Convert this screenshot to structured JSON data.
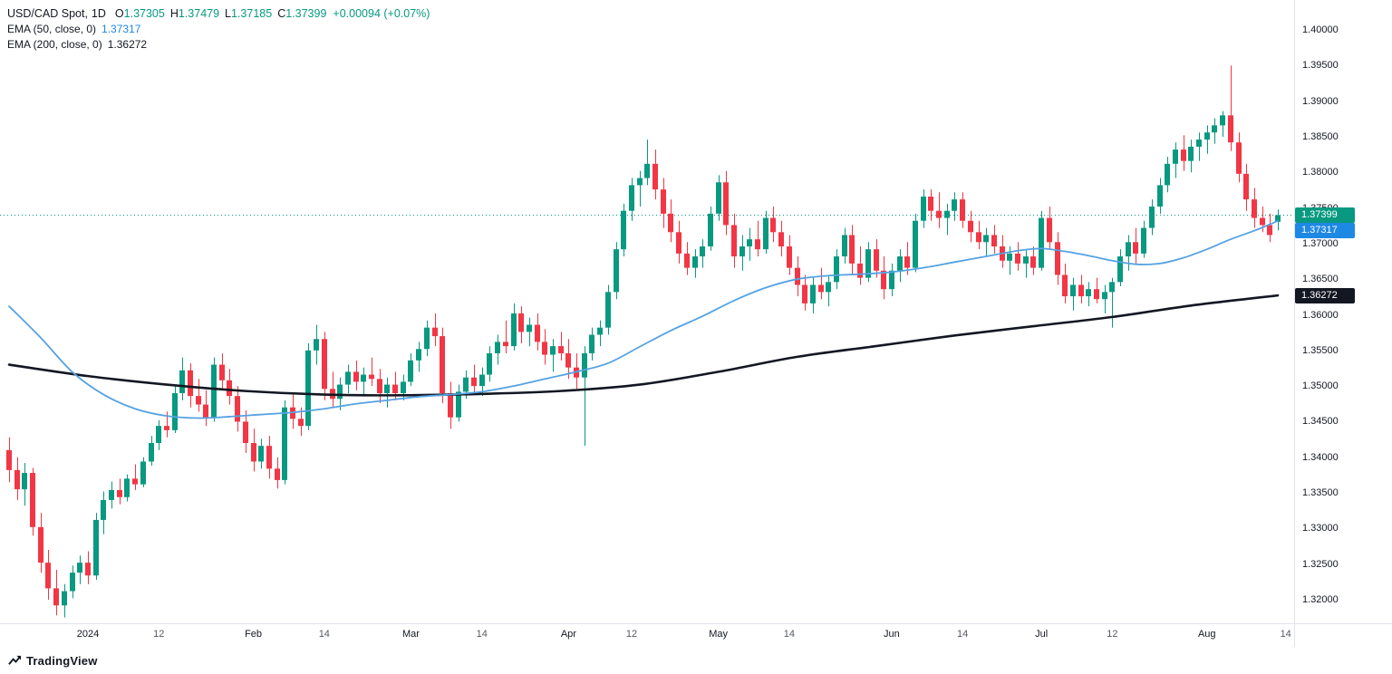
{
  "header": {
    "symbol": "USD/CAD Spot,",
    "timeframe": "1D",
    "ohlc": [
      {
        "label": "O",
        "value": "1.37305"
      },
      {
        "label": "H",
        "value": "1.37479"
      },
      {
        "label": "L",
        "value": "1.37185"
      },
      {
        "label": "C",
        "value": "1.37399"
      }
    ],
    "change": "+0.00094 (+0.07%)"
  },
  "indicators": [
    {
      "name": "EMA (50, close, 0)",
      "value": "1.37317",
      "color": "#1E88E5"
    },
    {
      "name": "EMA (200, close, 0)",
      "value": "1.36272",
      "color": "#131722"
    }
  ],
  "footer": {
    "logo_text": "TradingView"
  },
  "chart_data": {
    "type": "candlestick",
    "title": "USD/CAD Spot daily candlesticks with EMA(50) and EMA(200)",
    "symbol": "USD/CAD",
    "interval": "1D",
    "legend_position": "top-left",
    "grid": false,
    "colors": {
      "up": "#089981",
      "down": "#F23645",
      "ema50_line": "#55A2E3",
      "ema50_accent": "#1E88E5",
      "ema200_line": "#131722",
      "last_price_line": "#089981"
    },
    "y_axis": {
      "min": 1.32,
      "max": 1.4,
      "tick_labels": [
        "1.40000",
        "1.39500",
        "1.39000",
        "1.38500",
        "1.38000",
        "1.37500",
        "1.37000",
        "1.36500",
        "1.36000",
        "1.35500",
        "1.35000",
        "1.34500",
        "1.34000",
        "1.33500",
        "1.33000",
        "1.32500",
        "1.32000"
      ]
    },
    "x_ticks": [
      {
        "label": "2024",
        "i": 10,
        "major": true
      },
      {
        "label": "12",
        "i": 19,
        "major": false
      },
      {
        "label": "Feb",
        "i": 31,
        "major": true
      },
      {
        "label": "14",
        "i": 40,
        "major": false
      },
      {
        "label": "Mar",
        "i": 51,
        "major": true
      },
      {
        "label": "14",
        "i": 60,
        "major": false
      },
      {
        "label": "Apr",
        "i": 71,
        "major": true
      },
      {
        "label": "12",
        "i": 79,
        "major": false
      },
      {
        "label": "May",
        "i": 90,
        "major": true
      },
      {
        "label": "14",
        "i": 99,
        "major": false
      },
      {
        "label": "Jun",
        "i": 112,
        "major": true
      },
      {
        "label": "14",
        "i": 121,
        "major": false
      },
      {
        "label": "Jul",
        "i": 131,
        "major": true
      },
      {
        "label": "12",
        "i": 140,
        "major": false
      },
      {
        "label": "Aug",
        "i": 152,
        "major": true
      },
      {
        "label": "14",
        "i": 162,
        "major": false
      }
    ],
    "last_price": 1.37399,
    "price_tags": [
      {
        "text": "1.37399",
        "price": 1.37399,
        "color": "#089981"
      },
      {
        "text": "1.37317",
        "price": 1.37317,
        "color": "#1E88E5"
      },
      {
        "text": "1.36272",
        "price": 1.36272,
        "color": "#131722"
      }
    ],
    "candles": [
      [
        1.341,
        1.3428,
        1.3365,
        1.3382
      ],
      [
        1.3382,
        1.34,
        1.334,
        1.3355
      ],
      [
        1.3355,
        1.3392,
        1.3332,
        1.3378
      ],
      [
        1.3378,
        1.3385,
        1.329,
        1.3302
      ],
      [
        1.3302,
        1.3322,
        1.3238,
        1.3252
      ],
      [
        1.3252,
        1.327,
        1.32,
        1.3216
      ],
      [
        1.3216,
        1.3242,
        1.3178,
        1.3192
      ],
      [
        1.3192,
        1.3222,
        1.3175,
        1.3212
      ],
      [
        1.3212,
        1.3248,
        1.3202,
        1.3238
      ],
      [
        1.3238,
        1.3262,
        1.3222,
        1.3252
      ],
      [
        1.3252,
        1.3268,
        1.3222,
        1.3234
      ],
      [
        1.3234,
        1.3322,
        1.3228,
        1.3312
      ],
      [
        1.3312,
        1.3352,
        1.3292,
        1.334
      ],
      [
        1.334,
        1.3366,
        1.3328,
        1.3354
      ],
      [
        1.3354,
        1.337,
        1.3334,
        1.3344
      ],
      [
        1.3344,
        1.3376,
        1.3338,
        1.337
      ],
      [
        1.337,
        1.339,
        1.3354,
        1.3362
      ],
      [
        1.3362,
        1.34,
        1.3358,
        1.3394
      ],
      [
        1.3394,
        1.343,
        1.3388,
        1.342
      ],
      [
        1.342,
        1.3452,
        1.341,
        1.3444
      ],
      [
        1.3444,
        1.3464,
        1.3428,
        1.3438
      ],
      [
        1.3438,
        1.35,
        1.3434,
        1.349
      ],
      [
        1.349,
        1.354,
        1.348,
        1.3522
      ],
      [
        1.3522,
        1.3532,
        1.347,
        1.3486
      ],
      [
        1.3486,
        1.351,
        1.3464,
        1.3474
      ],
      [
        1.3474,
        1.3494,
        1.3444,
        1.3456
      ],
      [
        1.3456,
        1.354,
        1.345,
        1.353
      ],
      [
        1.353,
        1.3546,
        1.3494,
        1.3508
      ],
      [
        1.3508,
        1.3524,
        1.3474,
        1.3486
      ],
      [
        1.3486,
        1.35,
        1.3436,
        1.345
      ],
      [
        1.345,
        1.3466,
        1.3406,
        1.342
      ],
      [
        1.342,
        1.344,
        1.338,
        1.3394
      ],
      [
        1.3394,
        1.3426,
        1.3384,
        1.3416
      ],
      [
        1.3416,
        1.343,
        1.337,
        1.3384
      ],
      [
        1.3384,
        1.34,
        1.3356,
        1.3368
      ],
      [
        1.3368,
        1.348,
        1.3362,
        1.347
      ],
      [
        1.347,
        1.349,
        1.344,
        1.3454
      ],
      [
        1.3454,
        1.347,
        1.343,
        1.3444
      ],
      [
        1.3444,
        1.356,
        1.3438,
        1.355
      ],
      [
        1.355,
        1.3586,
        1.353,
        1.3566
      ],
      [
        1.3566,
        1.3576,
        1.348,
        1.3496
      ],
      [
        1.3496,
        1.352,
        1.347,
        1.3482
      ],
      [
        1.3482,
        1.3512,
        1.3466,
        1.3502
      ],
      [
        1.3502,
        1.353,
        1.349,
        1.352
      ],
      [
        1.352,
        1.3536,
        1.3494,
        1.3506
      ],
      [
        1.3506,
        1.3526,
        1.3486,
        1.3516
      ],
      [
        1.3516,
        1.354,
        1.35,
        1.351
      ],
      [
        1.351,
        1.3524,
        1.3476,
        1.349
      ],
      [
        1.349,
        1.3512,
        1.347,
        1.3502
      ],
      [
        1.3502,
        1.352,
        1.348,
        1.349
      ],
      [
        1.349,
        1.3516,
        1.348,
        1.3506
      ],
      [
        1.3506,
        1.3546,
        1.35,
        1.3536
      ],
      [
        1.3536,
        1.3562,
        1.352,
        1.3552
      ],
      [
        1.3552,
        1.3592,
        1.3542,
        1.3582
      ],
      [
        1.3582,
        1.3602,
        1.3556,
        1.357
      ],
      [
        1.357,
        1.3582,
        1.3476,
        1.349
      ],
      [
        1.349,
        1.3506,
        1.344,
        1.3456
      ],
      [
        1.3456,
        1.3502,
        1.345,
        1.3492
      ],
      [
        1.3492,
        1.3522,
        1.3482,
        1.3512
      ],
      [
        1.3512,
        1.353,
        1.349,
        1.35
      ],
      [
        1.35,
        1.3526,
        1.3486,
        1.3516
      ],
      [
        1.3516,
        1.3556,
        1.3506,
        1.3546
      ],
      [
        1.3546,
        1.3572,
        1.353,
        1.3562
      ],
      [
        1.3562,
        1.3592,
        1.3546,
        1.3556
      ],
      [
        1.3556,
        1.3616,
        1.355,
        1.3602
      ],
      [
        1.3602,
        1.3612,
        1.356,
        1.3576
      ],
      [
        1.3576,
        1.3596,
        1.3556,
        1.3586
      ],
      [
        1.3586,
        1.3602,
        1.355,
        1.3562
      ],
      [
        1.3562,
        1.358,
        1.353,
        1.3544
      ],
      [
        1.3544,
        1.3566,
        1.352,
        1.3556
      ],
      [
        1.3556,
        1.3576,
        1.3536,
        1.3546
      ],
      [
        1.3546,
        1.3566,
        1.351,
        1.3526
      ],
      [
        1.3526,
        1.3546,
        1.3496,
        1.3512
      ],
      [
        1.3512,
        1.3556,
        1.3416,
        1.3546
      ],
      [
        1.3546,
        1.3582,
        1.3536,
        1.3572
      ],
      [
        1.3572,
        1.3592,
        1.3556,
        1.3582
      ],
      [
        1.3582,
        1.3642,
        1.3572,
        1.3632
      ],
      [
        1.3632,
        1.3702,
        1.3622,
        1.3692
      ],
      [
        1.3692,
        1.3756,
        1.3682,
        1.3746
      ],
      [
        1.3746,
        1.3792,
        1.3732,
        1.3782
      ],
      [
        1.3782,
        1.3802,
        1.3752,
        1.3792
      ],
      [
        1.3792,
        1.3846,
        1.3782,
        1.3812
      ],
      [
        1.3812,
        1.3832,
        1.3762,
        1.3776
      ],
      [
        1.3776,
        1.3792,
        1.3722,
        1.3742
      ],
      [
        1.3742,
        1.3762,
        1.3702,
        1.3716
      ],
      [
        1.3716,
        1.3732,
        1.3672,
        1.3686
      ],
      [
        1.3686,
        1.3702,
        1.3656,
        1.3666
      ],
      [
        1.3666,
        1.3692,
        1.3652,
        1.3682
      ],
      [
        1.3682,
        1.3706,
        1.3666,
        1.3696
      ],
      [
        1.3696,
        1.3752,
        1.369,
        1.3742
      ],
      [
        1.3742,
        1.3796,
        1.3732,
        1.3786
      ],
      [
        1.3786,
        1.3802,
        1.3712,
        1.3726
      ],
      [
        1.3726,
        1.3742,
        1.3666,
        1.3682
      ],
      [
        1.3682,
        1.3712,
        1.3662,
        1.3696
      ],
      [
        1.3696,
        1.3722,
        1.3676,
        1.3706
      ],
      [
        1.3706,
        1.3732,
        1.3682,
        1.3692
      ],
      [
        1.3692,
        1.3746,
        1.3686,
        1.3736
      ],
      [
        1.3736,
        1.3752,
        1.3702,
        1.3716
      ],
      [
        1.3716,
        1.3732,
        1.3682,
        1.3696
      ],
      [
        1.3696,
        1.3712,
        1.3656,
        1.3666
      ],
      [
        1.3666,
        1.3682,
        1.3626,
        1.3642
      ],
      [
        1.3642,
        1.3656,
        1.3606,
        1.3616
      ],
      [
        1.3616,
        1.3652,
        1.3602,
        1.3642
      ],
      [
        1.3642,
        1.3666,
        1.3622,
        1.3632
      ],
      [
        1.3632,
        1.3656,
        1.3612,
        1.3646
      ],
      [
        1.3646,
        1.3692,
        1.3636,
        1.3682
      ],
      [
        1.3682,
        1.3722,
        1.3672,
        1.3712
      ],
      [
        1.3712,
        1.3726,
        1.3656,
        1.3672
      ],
      [
        1.3672,
        1.3696,
        1.3642,
        1.3652
      ],
      [
        1.3652,
        1.3702,
        1.3646,
        1.3692
      ],
      [
        1.3692,
        1.3706,
        1.3652,
        1.3662
      ],
      [
        1.3662,
        1.3682,
        1.3622,
        1.3636
      ],
      [
        1.3636,
        1.3672,
        1.3626,
        1.3662
      ],
      [
        1.3662,
        1.3692,
        1.3646,
        1.3682
      ],
      [
        1.3682,
        1.3702,
        1.3656,
        1.3666
      ],
      [
        1.3666,
        1.3742,
        1.366,
        1.3732
      ],
      [
        1.3732,
        1.3776,
        1.3722,
        1.3766
      ],
      [
        1.3766,
        1.3776,
        1.3732,
        1.3746
      ],
      [
        1.3746,
        1.3772,
        1.3722,
        1.3736
      ],
      [
        1.3736,
        1.3756,
        1.3712,
        1.3746
      ],
      [
        1.3746,
        1.3772,
        1.3732,
        1.3762
      ],
      [
        1.3762,
        1.3772,
        1.3722,
        1.3732
      ],
      [
        1.3732,
        1.3746,
        1.3702,
        1.3716
      ],
      [
        1.3716,
        1.3732,
        1.3692,
        1.3702
      ],
      [
        1.3702,
        1.3722,
        1.3682,
        1.3712
      ],
      [
        1.3712,
        1.3726,
        1.3686,
        1.3696
      ],
      [
        1.3696,
        1.3712,
        1.3666,
        1.3676
      ],
      [
        1.3676,
        1.3696,
        1.3656,
        1.3686
      ],
      [
        1.3686,
        1.3702,
        1.3662,
        1.3672
      ],
      [
        1.3672,
        1.3692,
        1.3652,
        1.3682
      ],
      [
        1.3682,
        1.3696,
        1.3656,
        1.3666
      ],
      [
        1.3666,
        1.3746,
        1.3662,
        1.3736
      ],
      [
        1.3736,
        1.3752,
        1.3692,
        1.3702
      ],
      [
        1.3702,
        1.3716,
        1.3642,
        1.3656
      ],
      [
        1.3656,
        1.3672,
        1.3616,
        1.3626
      ],
      [
        1.3626,
        1.3652,
        1.3606,
        1.3642
      ],
      [
        1.3642,
        1.3656,
        1.3616,
        1.3626
      ],
      [
        1.3626,
        1.3646,
        1.3612,
        1.3636
      ],
      [
        1.3636,
        1.3652,
        1.3616,
        1.3622
      ],
      [
        1.3622,
        1.3642,
        1.3602,
        1.3632
      ],
      [
        1.3632,
        1.3652,
        1.3582,
        1.3646
      ],
      [
        1.3646,
        1.3692,
        1.364,
        1.3682
      ],
      [
        1.3682,
        1.3712,
        1.3662,
        1.3702
      ],
      [
        1.3702,
        1.3722,
        1.3672,
        1.3686
      ],
      [
        1.3686,
        1.3732,
        1.368,
        1.3722
      ],
      [
        1.3722,
        1.3762,
        1.3712,
        1.3752
      ],
      [
        1.3752,
        1.3792,
        1.3742,
        1.3782
      ],
      [
        1.3782,
        1.3822,
        1.3772,
        1.3812
      ],
      [
        1.3812,
        1.3842,
        1.3792,
        1.3832
      ],
      [
        1.3832,
        1.3852,
        1.3802,
        1.3816
      ],
      [
        1.3816,
        1.3846,
        1.38,
        1.3836
      ],
      [
        1.3836,
        1.3856,
        1.3816,
        1.3846
      ],
      [
        1.3846,
        1.3866,
        1.3826,
        1.3856
      ],
      [
        1.3856,
        1.3876,
        1.384,
        1.3866
      ],
      [
        1.3866,
        1.3886,
        1.385,
        1.388
      ],
      [
        1.388,
        1.395,
        1.383,
        1.3842
      ],
      [
        1.3842,
        1.3856,
        1.3786,
        1.3798
      ],
      [
        1.3798,
        1.3812,
        1.3746,
        1.3762
      ],
      [
        1.3762,
        1.3778,
        1.3722,
        1.3736
      ],
      [
        1.3736,
        1.3752,
        1.3716,
        1.3726
      ],
      [
        1.3726,
        1.3742,
        1.3702,
        1.3712
      ],
      [
        1.37305,
        1.37479,
        1.37185,
        1.37399
      ]
    ],
    "ema50_points": [
      [
        0,
        1.3612
      ],
      [
        4,
        1.3568
      ],
      [
        8,
        1.352
      ],
      [
        12,
        1.3488
      ],
      [
        16,
        1.3468
      ],
      [
        20,
        1.3458
      ],
      [
        24,
        1.3455
      ],
      [
        28,
        1.3457
      ],
      [
        32,
        1.346
      ],
      [
        36,
        1.3463
      ],
      [
        40,
        1.3468
      ],
      [
        44,
        1.3475
      ],
      [
        48,
        1.348
      ],
      [
        52,
        1.3485
      ],
      [
        56,
        1.3488
      ],
      [
        60,
        1.3492
      ],
      [
        64,
        1.35
      ],
      [
        68,
        1.351
      ],
      [
        72,
        1.352
      ],
      [
        76,
        1.3532
      ],
      [
        80,
        1.3555
      ],
      [
        84,
        1.3578
      ],
      [
        88,
        1.3598
      ],
      [
        92,
        1.362
      ],
      [
        96,
        1.3638
      ],
      [
        100,
        1.365
      ],
      [
        104,
        1.3655
      ],
      [
        108,
        1.3657
      ],
      [
        112,
        1.366
      ],
      [
        116,
        1.3666
      ],
      [
        120,
        1.3674
      ],
      [
        124,
        1.3682
      ],
      [
        128,
        1.369
      ],
      [
        131,
        1.3693
      ],
      [
        134,
        1.3689
      ],
      [
        137,
        1.3683
      ],
      [
        140,
        1.3676
      ],
      [
        143,
        1.3671
      ],
      [
        146,
        1.3672
      ],
      [
        149,
        1.368
      ],
      [
        152,
        1.3692
      ],
      [
        155,
        1.3706
      ],
      [
        158,
        1.3718
      ],
      [
        161,
        1.37317
      ]
    ],
    "ema200_points": [
      [
        0,
        1.353
      ],
      [
        10,
        1.3514
      ],
      [
        20,
        1.3502
      ],
      [
        30,
        1.3493
      ],
      [
        40,
        1.3488
      ],
      [
        50,
        1.3487
      ],
      [
        60,
        1.3489
      ],
      [
        70,
        1.3493
      ],
      [
        80,
        1.3502
      ],
      [
        90,
        1.352
      ],
      [
        100,
        1.3541
      ],
      [
        110,
        1.3556
      ],
      [
        120,
        1.3571
      ],
      [
        130,
        1.3584
      ],
      [
        140,
        1.3597
      ],
      [
        150,
        1.3613
      ],
      [
        161,
        1.36272
      ]
    ]
  }
}
